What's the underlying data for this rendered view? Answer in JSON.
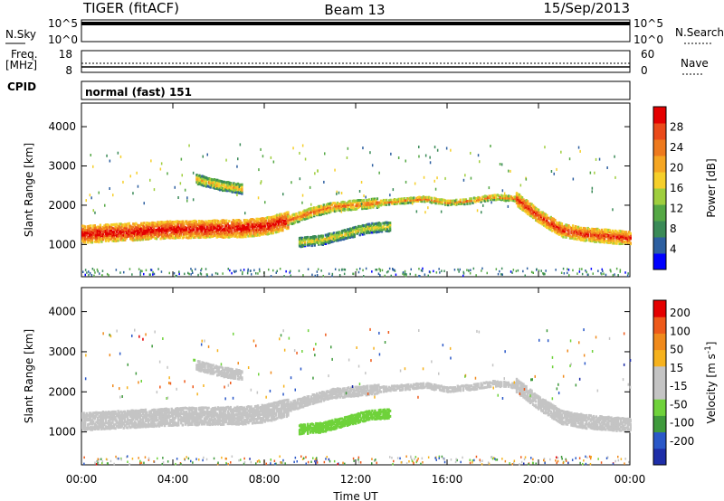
{
  "header": {
    "station": "TIGER (fitACF)",
    "beam": "Beam 13",
    "date": "15/Sep/2013"
  },
  "strip_labels": {
    "nsky": "N.Sky",
    "nsearch": "N.Search",
    "freq": "Freq.",
    "freq_unit": "[MHz]",
    "nave": "Nave",
    "cpid": "CPID",
    "cpid_value": "normal (fast) 151"
  },
  "nsky_ticks": [
    "10^5",
    "10^0"
  ],
  "nsearch_ticks": [
    "10^5",
    "10^0"
  ],
  "freq_ticks": [
    "18",
    "8"
  ],
  "nave_ticks": [
    "60",
    "0"
  ],
  "colors": {
    "power": [
      "#0000ff",
      "#2d5fa0",
      "#3a8a57",
      "#55a845",
      "#9fce3e",
      "#f6cf2a",
      "#f5a623",
      "#ee7a1e",
      "#ea4a1a",
      "#e40000"
    ],
    "velocity": [
      "#1e2ea8",
      "#2a58c8",
      "#3f9a3c",
      "#6fd23b",
      "#c4c4c4",
      "#c4c4c4",
      "#f6b21e",
      "#f08a1c",
      "#ee5a1a",
      "#e40000"
    ]
  },
  "chart_data": [
    {
      "type": "heatmap",
      "name": "power",
      "ylabel": "Slant Range [km]",
      "ylim": [
        180,
        4600
      ],
      "yticks": [
        1000,
        2000,
        3000,
        4000
      ],
      "xlim": [
        0,
        24
      ],
      "xticks": [
        "00:00",
        "04:00",
        "08:00",
        "12:00",
        "16:00",
        "20:00",
        "00:00"
      ],
      "colorbar_label": "Power [dB]",
      "colorbar_ticks": [
        "4",
        "8",
        "12",
        "16",
        "20",
        "24",
        "28"
      ],
      "colorbar_range": [
        0,
        30
      ],
      "bands": [
        {
          "t": [
            0,
            1,
            2,
            3,
            4,
            5,
            6,
            7,
            8,
            9
          ],
          "center": [
            1300,
            1330,
            1360,
            1390,
            1420,
            1430,
            1440,
            1450,
            1500,
            1650
          ],
          "width": 450,
          "value": 24
        },
        {
          "t": [
            9,
            10,
            11,
            12,
            13
          ],
          "center": [
            1650,
            1850,
            2000,
            2050,
            2100
          ],
          "width": 250,
          "value": 18
        },
        {
          "t": [
            13,
            14,
            15,
            16,
            17,
            18,
            19
          ],
          "center": [
            2100,
            2150,
            2200,
            2100,
            2150,
            2250,
            2200
          ],
          "width": 150,
          "value": 17
        },
        {
          "t": [
            19,
            20,
            21,
            22,
            23,
            24
          ],
          "center": [
            2200,
            1750,
            1400,
            1300,
            1250,
            1200
          ],
          "width": 350,
          "value": 22
        },
        {
          "t": [
            9.5,
            10.5,
            11.5,
            12.5,
            13.5
          ],
          "center": [
            1100,
            1150,
            1300,
            1450,
            1500
          ],
          "width": 250,
          "value": 12
        },
        {
          "t": [
            5,
            6,
            7
          ],
          "center": [
            2700,
            2550,
            2450
          ],
          "width": 250,
          "value": 14
        }
      ]
    },
    {
      "type": "heatmap",
      "name": "velocity",
      "ylabel": "Slant Range [km]",
      "ylim": [
        180,
        4600
      ],
      "yticks": [
        1000,
        2000,
        3000,
        4000
      ],
      "xlim": [
        0,
        24
      ],
      "xticks": [
        "00:00",
        "04:00",
        "08:00",
        "12:00",
        "16:00",
        "20:00",
        "00:00"
      ],
      "xlabel": "Time UT",
      "colorbar_label": "Velocity [m s",
      "colorbar_unit_sup": "-1",
      "colorbar_ticks": [
        "200",
        "100",
        "50",
        "15",
        "-15",
        "-50",
        "-100",
        "-200"
      ],
      "colorbar_range": [
        -250,
        250
      ],
      "bands": [
        {
          "t": [
            0,
            1,
            2,
            3,
            4,
            5,
            6,
            7,
            8,
            9
          ],
          "center": [
            1300,
            1330,
            1360,
            1390,
            1420,
            1430,
            1440,
            1450,
            1500,
            1650
          ],
          "width": 450,
          "value": 0
        },
        {
          "t": [
            9,
            10,
            11,
            12,
            13
          ],
          "center": [
            1650,
            1850,
            2000,
            2050,
            2100
          ],
          "width": 250,
          "value": 0
        },
        {
          "t": [
            13,
            14,
            15,
            16,
            17,
            18,
            19
          ],
          "center": [
            2100,
            2150,
            2200,
            2100,
            2150,
            2250,
            2200
          ],
          "width": 150,
          "value": 0
        },
        {
          "t": [
            19,
            20,
            21,
            22,
            23,
            24
          ],
          "center": [
            2200,
            1750,
            1400,
            1300,
            1250,
            1200
          ],
          "width": 350,
          "value": 30
        },
        {
          "t": [
            9.5,
            10.5,
            11.5,
            12.5,
            13.5
          ],
          "center": [
            1100,
            1150,
            1300,
            1450,
            1500
          ],
          "width": 250,
          "value": -60
        },
        {
          "t": [
            5,
            6,
            7
          ],
          "center": [
            2700,
            2550,
            2450
          ],
          "width": 250,
          "value": 0
        }
      ]
    }
  ]
}
